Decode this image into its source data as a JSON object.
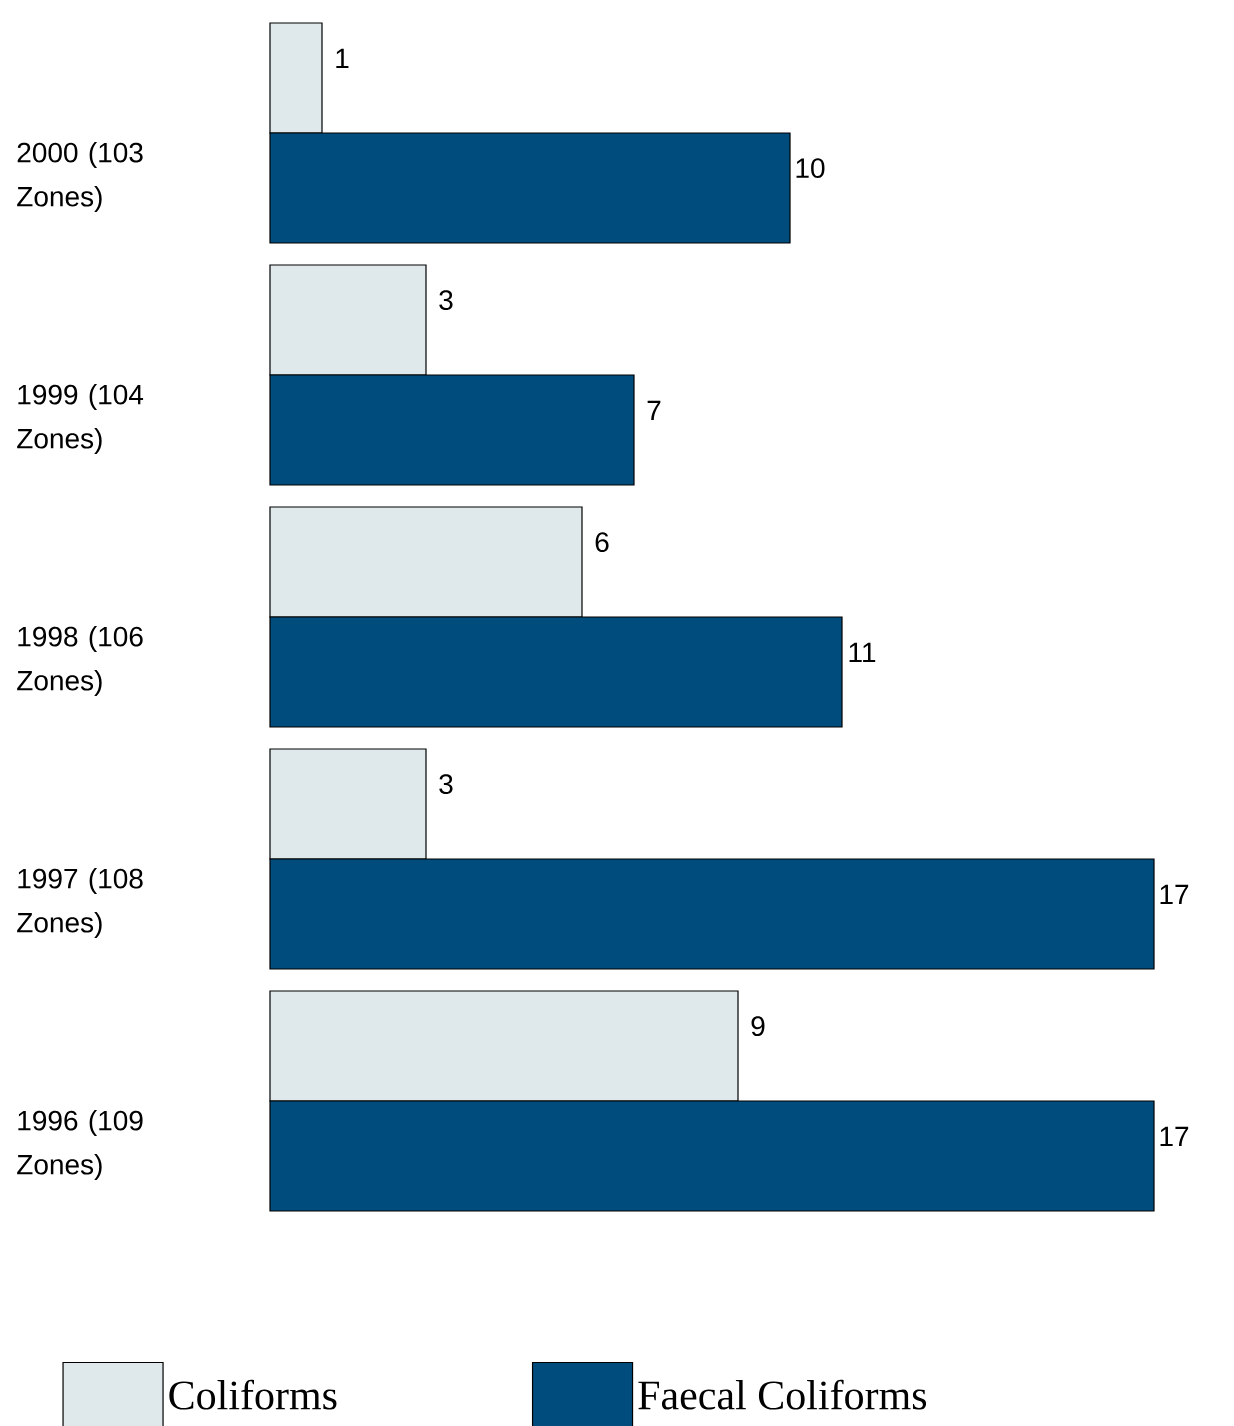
{
  "chart_data": {
    "type": "bar",
    "orientation": "horizontal",
    "categories": [
      "2000 (103 Zones)",
      "1999 (104 Zones)",
      "1998 (106 Zones)",
      "1997 (108 Zones)",
      "1996 (109 Zones)"
    ],
    "series": [
      {
        "name": "Coliforms",
        "color": "#dfe8ea",
        "values": [
          1,
          3,
          6,
          3,
          9
        ]
      },
      {
        "name": "Faecal Coliforms",
        "color": "#004c7c",
        "values": [
          10,
          7,
          11,
          17,
          17
        ]
      }
    ],
    "data_labels": true,
    "legend": "bottom"
  }
}
